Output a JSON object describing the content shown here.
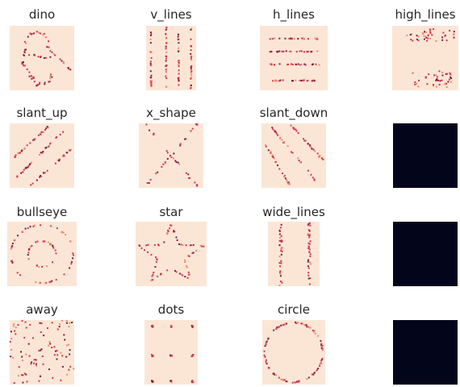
{
  "colors": {
    "panel_bg": "#fbe6d6",
    "point_light": "#f08a6e",
    "point_mid": "#d6364d",
    "point_dark": "#7a1d47",
    "empty_panel": "#03051a"
  },
  "chart_data": {
    "type": "heatmap",
    "layout": "4x4 grid of small-multiple density heatmaps (Datasaurus shapes)",
    "axes_visible": false,
    "panels": [
      {
        "title": "dino",
        "shape": "dino",
        "scale": "no-tick"
      },
      {
        "title": "v_lines",
        "shape": "v_lines"
      },
      {
        "title": "h_lines",
        "shape": "h_lines"
      },
      {
        "title": "high_lines",
        "shape": "high_lines"
      },
      {
        "title": "slant_up",
        "shape": "slant_up"
      },
      {
        "title": "x_shape",
        "shape": "x_shape"
      },
      {
        "title": "slant_down",
        "shape": "slant_down"
      },
      {
        "title": "",
        "shape": "empty"
      },
      {
        "title": "bullseye",
        "shape": "bullseye"
      },
      {
        "title": "star",
        "shape": "star"
      },
      {
        "title": "wide_lines",
        "shape": "wide_lines"
      },
      {
        "title": "",
        "shape": "empty"
      },
      {
        "title": "away",
        "shape": "away"
      },
      {
        "title": "dots",
        "shape": "dots"
      },
      {
        "title": "circle",
        "shape": "circle"
      },
      {
        "title": "",
        "shape": "empty"
      }
    ]
  }
}
